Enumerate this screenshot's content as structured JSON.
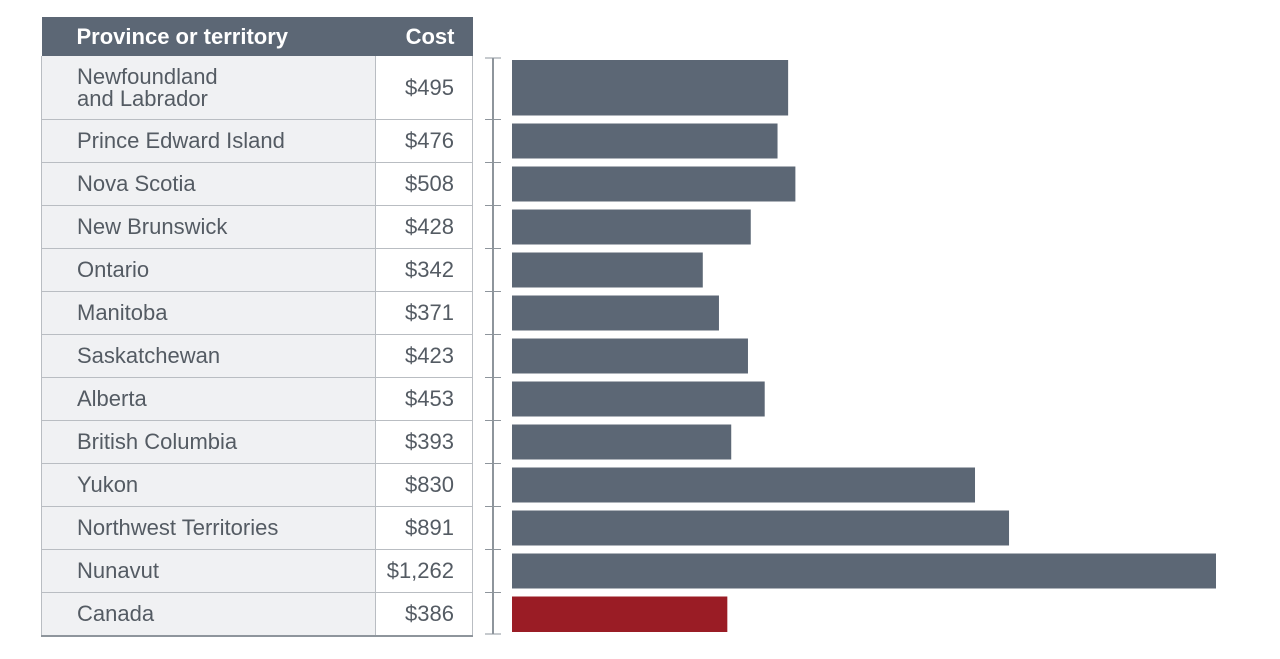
{
  "table": {
    "header_name": "Province or territory",
    "header_cost": "Cost"
  },
  "colors": {
    "bar": "#5c6775",
    "highlight_bar": "#9a1c25",
    "header_bg": "#5c6775",
    "name_cell_bg": "#f0f1f3"
  },
  "chart_data": {
    "type": "bar",
    "orientation": "horizontal",
    "categories": [
      "Newfoundland\nand Labrador",
      "Prince Edward Island",
      "Nova Scotia",
      "New Brunswick",
      "Ontario",
      "Manitoba",
      "Saskatchewan",
      "Alberta",
      "British Columbia",
      "Yukon",
      "Northwest Territories",
      "Nunavut",
      "Canada"
    ],
    "values": [
      495,
      476,
      508,
      428,
      342,
      371,
      423,
      453,
      393,
      830,
      891,
      1262,
      386
    ],
    "value_labels": [
      "$495",
      "$476",
      "$508",
      "$428",
      "$342",
      "$371",
      "$423",
      "$453",
      "$393",
      "$830",
      "$891",
      "$1,262",
      "$386"
    ],
    "highlight": "Canada",
    "xlim": [
      0,
      1262
    ]
  }
}
